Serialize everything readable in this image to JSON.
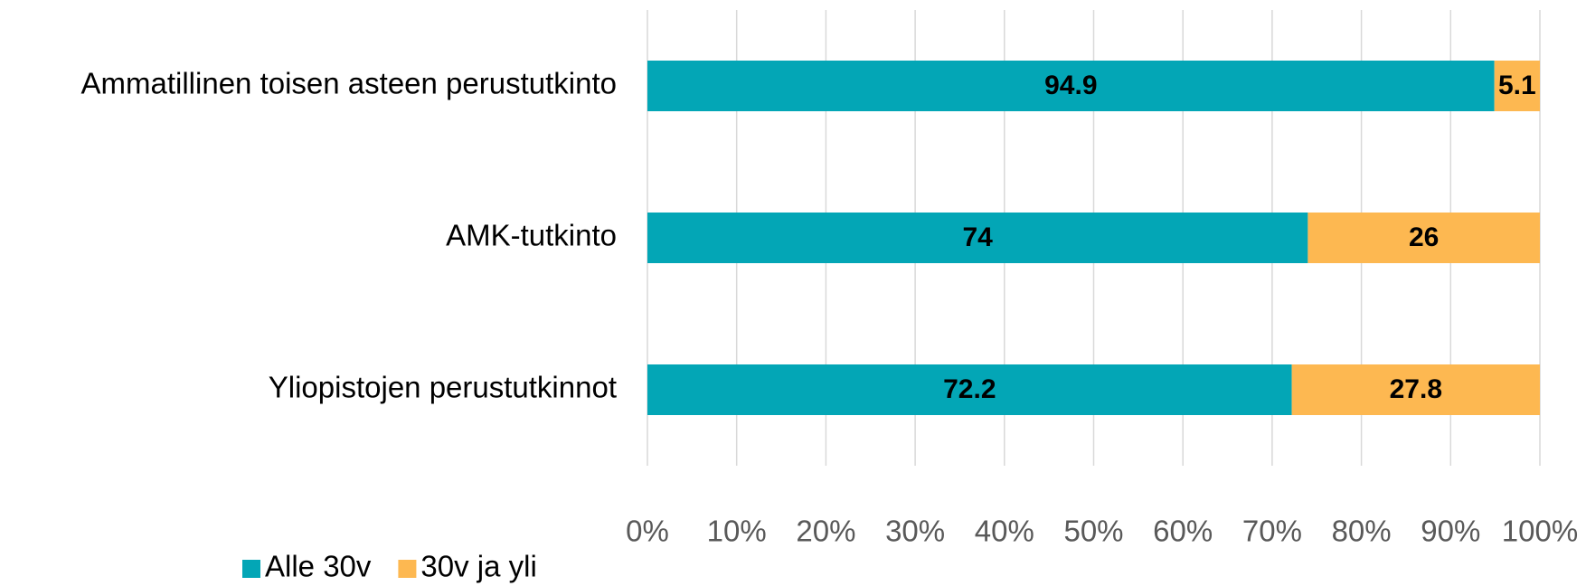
{
  "chart_data": {
    "type": "bar",
    "orientation": "horizontal",
    "stacked": true,
    "categories": [
      "Ammatillinen toisen asteen perustutkinto",
      "AMK-tutkinto",
      "Yliopistojen perustutkinnot"
    ],
    "series": [
      {
        "name": "Alle 30v",
        "color": "#03a6b6",
        "values": [
          94.9,
          74,
          72.2
        ]
      },
      {
        "name": "30v ja yli",
        "color": "#fdb851",
        "values": [
          5.1,
          26,
          27.8
        ]
      }
    ],
    "xlim": [
      0,
      100
    ],
    "xticks": [
      {
        "value": 0,
        "label": "0%"
      },
      {
        "value": 10,
        "label": "10%"
      },
      {
        "value": 20,
        "label": "20%"
      },
      {
        "value": 30,
        "label": "30%"
      },
      {
        "value": 40,
        "label": "40%"
      },
      {
        "value": 50,
        "label": "50%"
      },
      {
        "value": 60,
        "label": "60%"
      },
      {
        "value": 70,
        "label": "70%"
      },
      {
        "value": 80,
        "label": "80%"
      },
      {
        "value": 90,
        "label": "90%"
      },
      {
        "value": 100,
        "label": "100%"
      }
    ],
    "grid": true,
    "legend": "bottom-left"
  }
}
